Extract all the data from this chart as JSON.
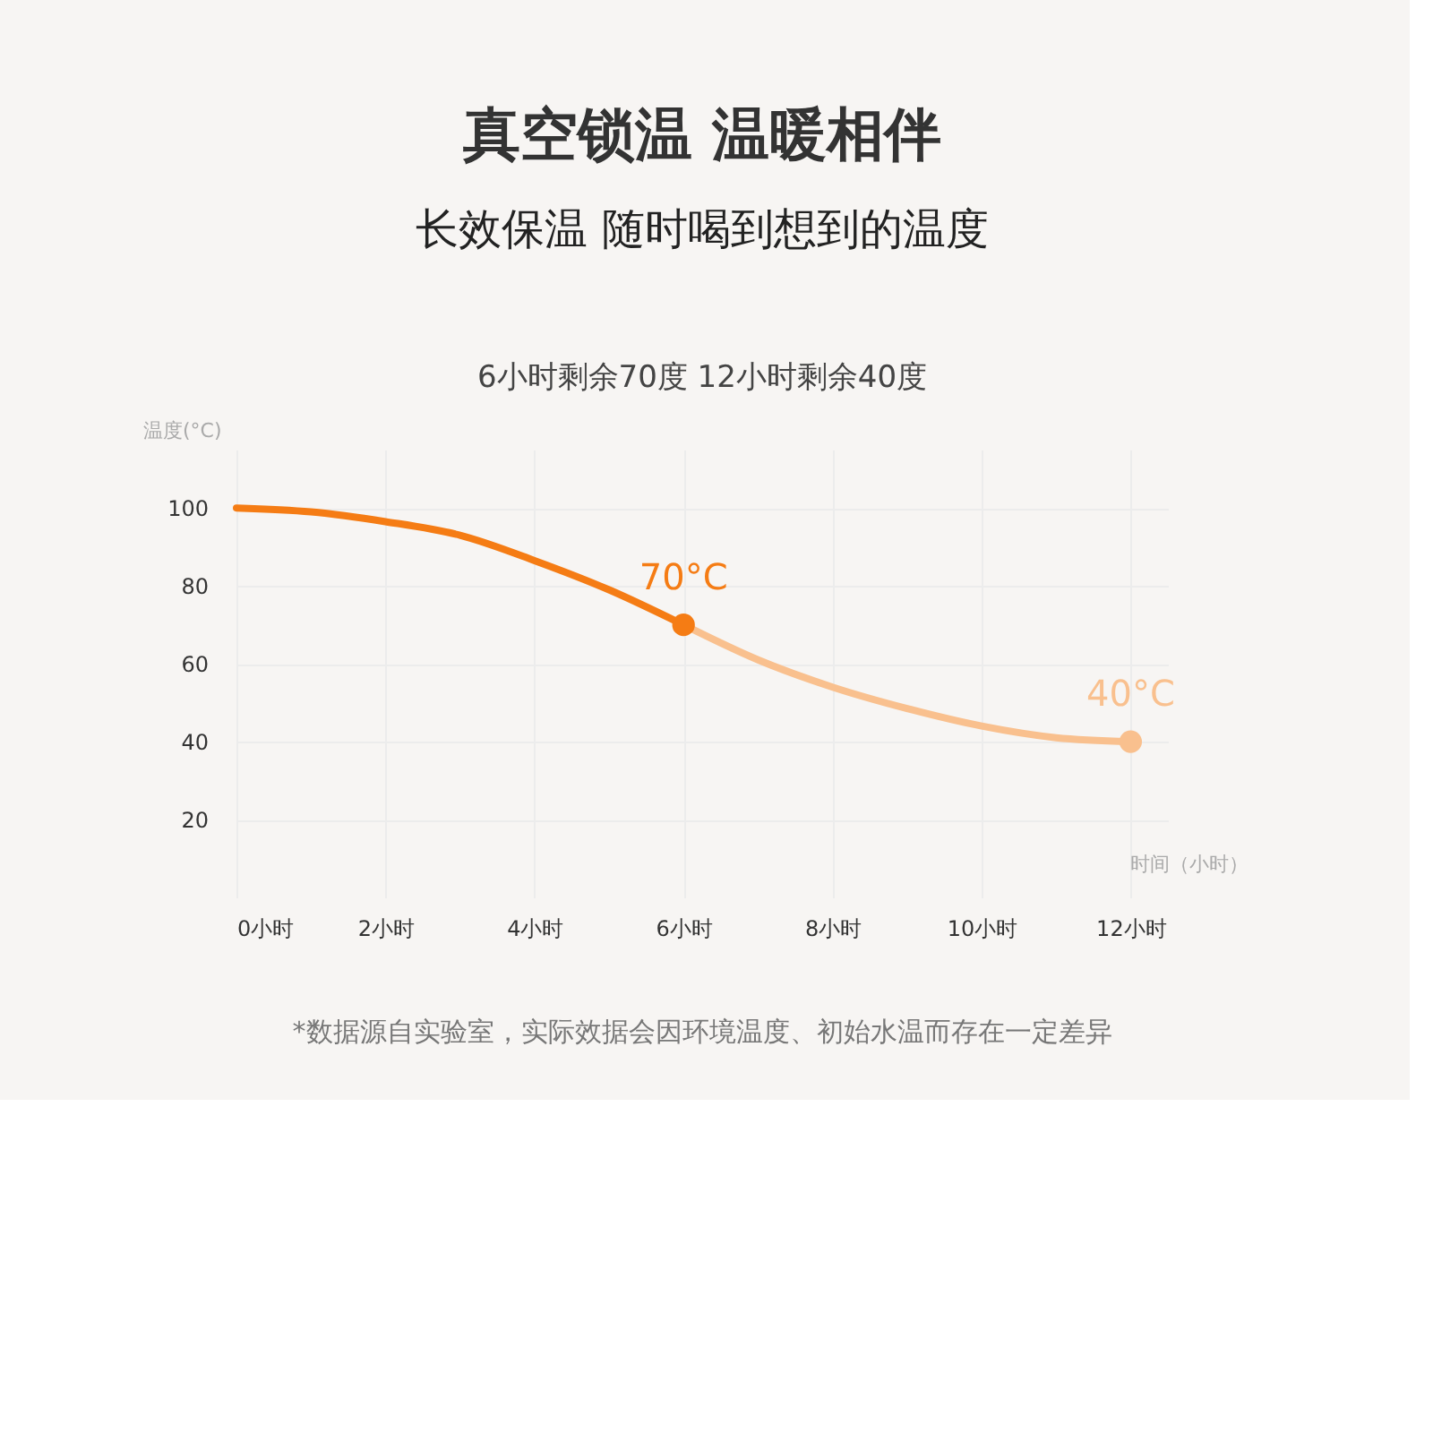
{
  "chart_data": {
    "type": "line",
    "title": "真空锁温 温暖相伴",
    "subtitle": "长效保温  随时喝到想到的温度",
    "xlabel": "时间（小时）",
    "ylabel": "温度(°C)",
    "series": [
      {
        "color": "#f57c14",
        "x": [
          0,
          1,
          2,
          3,
          4,
          5,
          6
        ],
        "values": [
          100,
          99,
          96.5,
          93,
          86.5,
          79,
          70
        ]
      },
      {
        "color": "#f9c08e",
        "x": [
          6,
          7,
          8,
          9,
          10,
          11,
          12
        ],
        "values": [
          70,
          61,
          54,
          48.5,
          44,
          41,
          40
        ]
      },
      {
        "type": "scatter",
        "color": "#f57c14",
        "x": [
          6
        ],
        "values": [
          70
        ]
      },
      {
        "type": "scatter",
        "color": "#f9c08e",
        "x": [
          12
        ],
        "values": [
          40
        ]
      }
    ],
    "xlim": [
      0,
      12.5
    ],
    "ylim": [
      0,
      115
    ],
    "xticks": [
      {
        "value": 0,
        "label": "0小时"
      },
      {
        "value": 2,
        "label": "2小时"
      },
      {
        "value": 4,
        "label": "4小时"
      },
      {
        "value": 6,
        "label": "6小时"
      },
      {
        "value": 8,
        "label": "8小时"
      },
      {
        "value": 10,
        "label": "10小时"
      },
      {
        "value": 12,
        "label": "12小时"
      }
    ],
    "yticks": [
      20,
      40,
      60,
      80,
      100
    ],
    "annotations": [
      {
        "text": "70°C",
        "x": 6,
        "y": 70
      },
      {
        "text": "40°C",
        "x": 12,
        "y": 40
      },
      "6小时剩余70度  12小时剩余40度",
      "*数据源自实验室，实际效据会因环境温度、初始水温而存在一定差异"
    ],
    "grid": true,
    "line_style": "solid"
  }
}
